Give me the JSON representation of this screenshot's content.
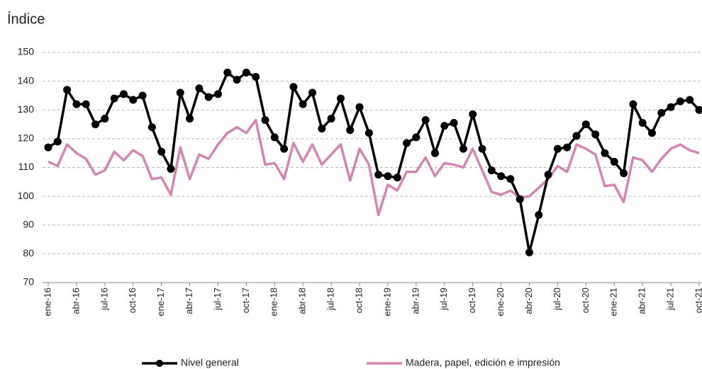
{
  "chart_data": {
    "type": "line",
    "title": "Índice",
    "categories": [
      "ene-16",
      null,
      null,
      "abr-16",
      null,
      null,
      "jul-16",
      null,
      null,
      "oct-16",
      null,
      null,
      "ene-17",
      null,
      null,
      "abr-17",
      null,
      null,
      "jul-17",
      null,
      null,
      "oct-17",
      null,
      null,
      "ene-18",
      null,
      null,
      "abr-18",
      null,
      null,
      "jul-18",
      null,
      null,
      "oct-18",
      null,
      null,
      "ene-19",
      null,
      null,
      "abr-19",
      null,
      null,
      "jul-19",
      null,
      null,
      "oct-19",
      null,
      null,
      "ene-20",
      null,
      null,
      "abr-20",
      null,
      null,
      "jul-20",
      null,
      null,
      "oct-20",
      null,
      null,
      "ene-21",
      null,
      null,
      "abr-21",
      null,
      null,
      "jul-21",
      null,
      null,
      "oct-21"
    ],
    "series": [
      {
        "name": "Nivel general",
        "color": "#000000",
        "markers": true,
        "values": [
          117,
          119,
          137,
          132,
          132,
          125,
          127,
          134,
          135.5,
          133.5,
          135,
          124,
          115.5,
          109.5,
          136,
          127,
          137.5,
          134.5,
          135.5,
          143,
          140.5,
          143,
          141.5,
          126.5,
          120.5,
          116.5,
          138,
          132,
          136,
          123.5,
          127,
          134,
          123,
          131,
          122,
          107.5,
          107,
          106.5,
          118.5,
          120.5,
          126.5,
          115,
          124.5,
          125.5,
          116.5,
          128.5,
          116.5,
          109,
          107,
          106,
          99,
          80.5,
          93.5,
          107.5,
          116.5,
          117,
          121,
          125,
          121.5,
          115,
          112,
          108,
          132,
          125.5,
          122,
          129,
          131,
          133,
          133.5,
          130
        ]
      },
      {
        "name": "Madera, papel, edición e impresión",
        "color": "#d485b3",
        "markers": false,
        "values": [
          112,
          110.5,
          118,
          115,
          113,
          107.5,
          109,
          115.5,
          112.5,
          116,
          114,
          106,
          106.5,
          100.5,
          117,
          106,
          114.5,
          113,
          118,
          122,
          124,
          122,
          126.5,
          111,
          111.5,
          106,
          118.5,
          112,
          118,
          111,
          114.5,
          118,
          105.5,
          116.5,
          111,
          93.5,
          104,
          102,
          108.5,
          108.5,
          113.5,
          107,
          111.5,
          111,
          110,
          116.5,
          109,
          101.5,
          100.5,
          102,
          99.5,
          100,
          103,
          106,
          110.5,
          108.5,
          118,
          116.5,
          114.5,
          103.5,
          104,
          98,
          113.5,
          112.5,
          108.5,
          113,
          116.5,
          118,
          116,
          115
        ]
      }
    ],
    "ylim": [
      70,
      150
    ],
    "yticks": [
      70,
      80,
      90,
      100,
      110,
      120,
      130,
      140,
      150
    ],
    "grid": true,
    "legend": "bottom"
  }
}
